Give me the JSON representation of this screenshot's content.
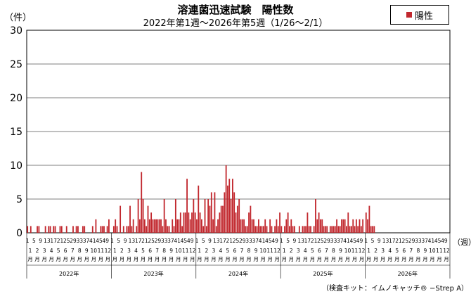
{
  "chart_data": {
    "type": "bar",
    "title": "溶連菌迅速試験　陽性数",
    "subtitle": "2022年第1週〜2026年第5週（1/26〜2/1）",
    "ylabel": "（件）",
    "xlabel": "（週）",
    "ylim": [
      0,
      30
    ],
    "yticks": [
      0,
      5,
      10,
      15,
      20,
      25,
      30
    ],
    "grid": true,
    "legend_position": "top-right",
    "series": [
      {
        "name": "陽性",
        "color": "#c1272d",
        "years": [
          {
            "label": "2022年",
            "weeks": 52,
            "values": [
              1,
              0,
              1,
              0,
              0,
              0,
              1,
              1,
              0,
              0,
              0,
              1,
              0,
              1,
              1,
              0,
              1,
              1,
              0,
              0,
              1,
              1,
              0,
              0,
              1,
              0,
              0,
              0,
              1,
              0,
              1,
              1,
              0,
              0,
              1,
              1,
              0,
              0,
              0,
              0,
              1,
              0,
              2,
              0,
              0,
              1,
              1,
              1,
              0,
              1,
              2,
              0
            ]
          },
          {
            "label": "2023年",
            "weeks": 52,
            "values": [
              0,
              1,
              2,
              1,
              0,
              4,
              0,
              1,
              0,
              1,
              1,
              4,
              1,
              2,
              0,
              1,
              5,
              2,
              9,
              5,
              2,
              1,
              4,
              2,
              3,
              2,
              2,
              2,
              2,
              2,
              2,
              1,
              5,
              2,
              1,
              1,
              0,
              2,
              1,
              5,
              2,
              2,
              3,
              1,
              3,
              3,
              8,
              3,
              2,
              3,
              5,
              3
            ]
          },
          {
            "label": "2024年",
            "weeks": 52,
            "values": [
              2,
              7,
              3,
              2,
              1,
              5,
              1,
              5,
              4,
              6,
              2,
              6,
              1,
              2,
              3,
              4,
              4,
              6,
              10,
              7,
              8,
              5,
              8,
              6,
              3,
              4,
              5,
              2,
              2,
              2,
              1,
              1,
              3,
              4,
              2,
              2,
              1,
              1,
              2,
              1,
              1,
              1,
              2,
              1,
              0,
              2,
              1,
              0,
              1,
              2,
              1,
              3
            ]
          },
          {
            "label": "2025年",
            "weeks": 52,
            "values": [
              1,
              0,
              1,
              2,
              3,
              1,
              2,
              1,
              1,
              0,
              0,
              1,
              0,
              1,
              1,
              1,
              3,
              1,
              1,
              0,
              1,
              5,
              2,
              3,
              2,
              2,
              1,
              1,
              1,
              0,
              1,
              1,
              1,
              1,
              2,
              1,
              1,
              2,
              2,
              2,
              1,
              3,
              1,
              1,
              2,
              1,
              2,
              1,
              2,
              1,
              2,
              0
            ]
          },
          {
            "label": "2026年",
            "weeks": 52,
            "values": [
              3,
              2,
              4,
              1,
              1,
              1,
              0,
              0,
              0,
              0,
              0,
              0,
              0,
              0,
              0,
              0,
              0,
              0,
              0,
              0,
              0,
              0,
              0,
              0,
              0,
              0,
              0,
              0,
              0,
              0,
              0,
              0,
              0,
              0,
              0,
              0,
              0,
              0,
              0,
              0,
              0,
              0,
              0,
              0,
              0,
              0,
              0,
              0,
              0,
              0,
              0,
              0
            ]
          }
        ]
      }
    ],
    "week_tick_labels": [
      "1",
      "5",
      "9",
      "13",
      "17",
      "21",
      "25",
      "29",
      "33",
      "37",
      "41",
      "45",
      "49"
    ],
    "month_labels": [
      "1",
      "2",
      "3",
      "4",
      "5",
      "6",
      "7",
      "8",
      "9",
      "10",
      "11",
      "12"
    ],
    "month_suffix": "月",
    "years": [
      "2022年",
      "2023年",
      "2024年",
      "2025年",
      "2026年"
    ]
  },
  "legend": {
    "label": "陽性",
    "color": "#c1272d"
  },
  "footnote": "（検査キット：イムノキャッチ® −Strep A）"
}
